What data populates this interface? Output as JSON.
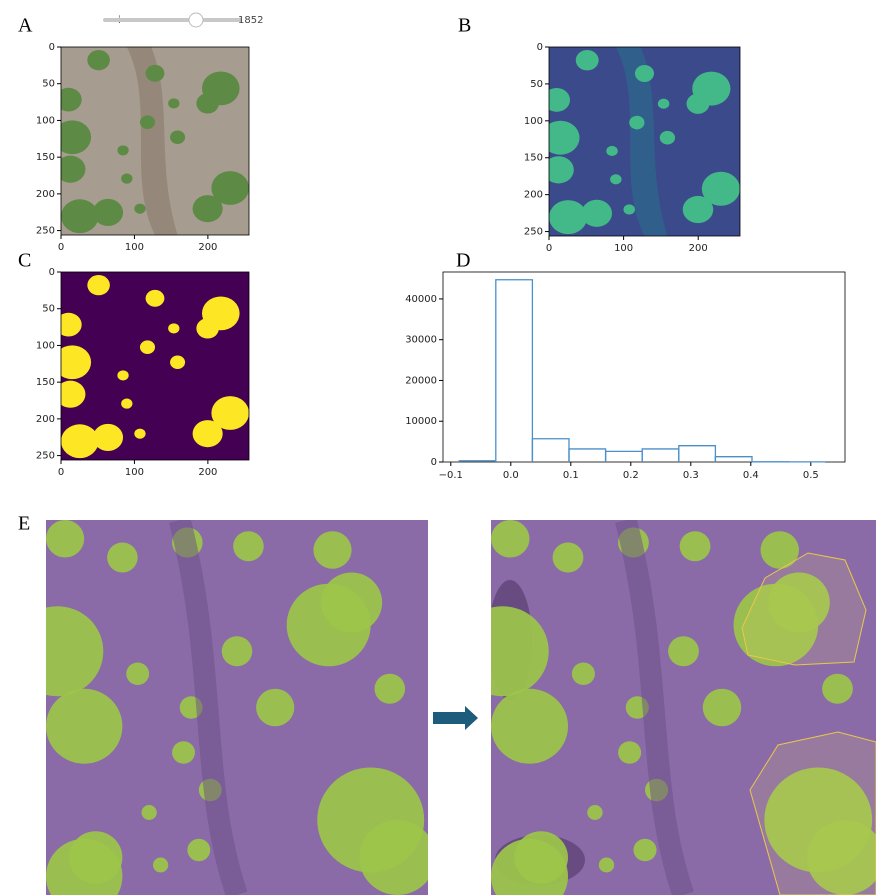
{
  "slider": {
    "label": "i",
    "value": "1852"
  },
  "panels": [
    {
      "letter": "A",
      "xlim": [
        0,
        256
      ],
      "ylim": [
        0,
        256
      ],
      "xticks": [
        0,
        100,
        200
      ],
      "yticks": [
        0,
        50,
        100,
        150,
        200,
        250
      ]
    },
    {
      "letter": "B",
      "xlim": [
        0,
        256
      ],
      "ylim": [
        0,
        256
      ],
      "xticks": [
        0,
        100,
        200
      ],
      "yticks": [
        0,
        50,
        100,
        150,
        200,
        250
      ]
    },
    {
      "letter": "C",
      "xlim": [
        0,
        256
      ],
      "ylim": [
        0,
        256
      ],
      "xticks": [
        0,
        100,
        200
      ],
      "yticks": [
        0,
        50,
        100,
        150,
        200,
        250
      ]
    }
  ],
  "chart_data": {
    "type": "histogram",
    "letter": "D",
    "color": "#4a8fc9",
    "bins": [
      -0.086,
      -0.025,
      0.036,
      0.097,
      0.158,
      0.219,
      0.28,
      0.341,
      0.402,
      0.463,
      0.524
    ],
    "counts": [
      300,
      44700,
      5700,
      3200,
      2600,
      3200,
      4000,
      1300,
      50,
      30
    ],
    "xlim": [
      -0.113,
      0.557
    ],
    "ylim": [
      0,
      46600
    ],
    "xticks": [
      {
        "value": -0.1,
        "label": "−0.1"
      },
      {
        "value": 0,
        "label": "0.0"
      },
      0.1,
      0.2,
      0.3,
      0.4,
      0.5
    ],
    "yticks": [
      0,
      10000,
      20000,
      30000,
      40000
    ]
  },
  "figure_e": {
    "letter": "E"
  }
}
